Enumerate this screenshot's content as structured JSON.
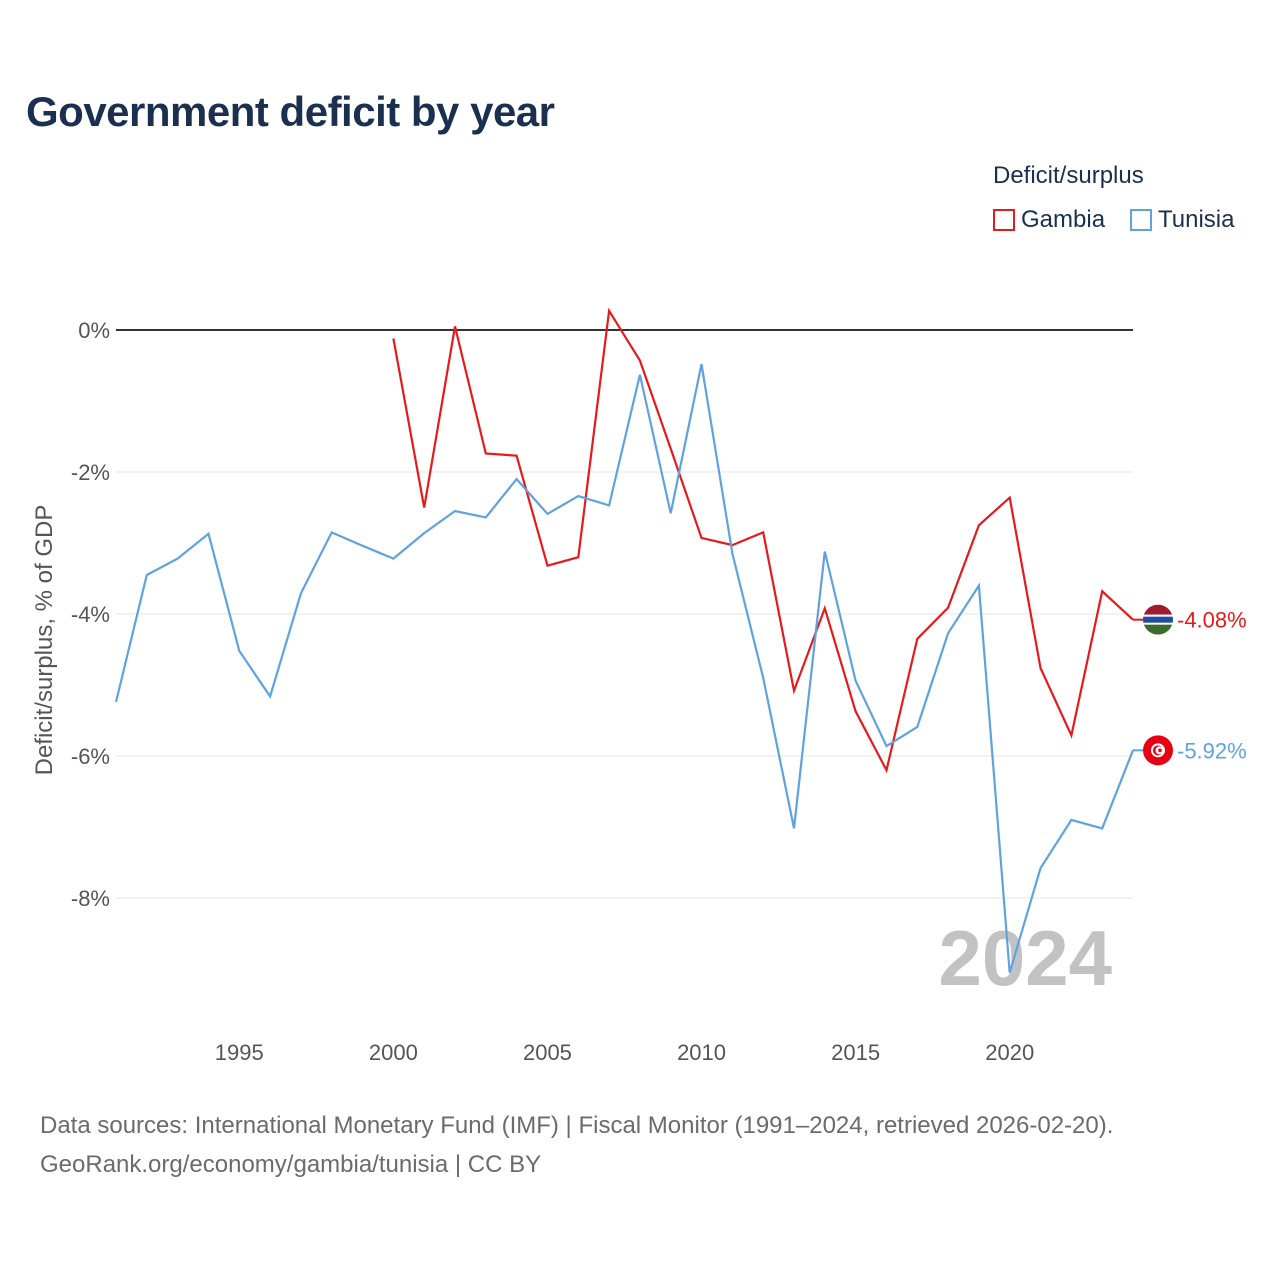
{
  "title": "Government deficit by year",
  "legend": {
    "title": "Deficit/surplus",
    "items": [
      {
        "name": "Gambia",
        "color": "#e41a1c"
      },
      {
        "name": "Tunisia",
        "color": "#5fa2e0"
      }
    ]
  },
  "watermark_year": "2024",
  "source": {
    "line1": "Data sources: International Monetary Fund (IMF) | Fiscal Monitor (1991–2024, retrieved 2026-02-20).",
    "line2": "GeoRank.org/economy/gambia/tunisia | CC BY"
  },
  "chart_data": {
    "type": "line",
    "title": "Government deficit by year",
    "xlabel": "",
    "ylabel": "Deficit/surplus, % of GDP",
    "xlim": [
      1991,
      2024
    ],
    "ylim": [
      -10,
      0.5
    ],
    "x_ticks": [
      1995,
      2000,
      2005,
      2010,
      2015,
      2020
    ],
    "y_ticks": [
      0,
      -2,
      -4,
      -6,
      -8
    ],
    "y_tick_labels": [
      "0%",
      "-2%",
      "-4%",
      "-6%",
      "-8%"
    ],
    "series": [
      {
        "name": "Gambia",
        "color": "#e41a1c",
        "end_label": "-4.08%",
        "flag_icon": "gambia-flag-icon",
        "x": [
          2000,
          2001,
          2002,
          2003,
          2004,
          2005,
          2006,
          2007,
          2008,
          2009,
          2010,
          2011,
          2012,
          2013,
          2014,
          2015,
          2016,
          2017,
          2018,
          2019,
          2020,
          2021,
          2022,
          2023,
          2024
        ],
        "values": [
          -0.12,
          -2.5,
          0.05,
          -1.74,
          -1.77,
          -3.32,
          -3.2,
          0.27,
          -0.43,
          -1.67,
          -2.93,
          -3.03,
          -2.85,
          -5.08,
          -3.92,
          -5.37,
          -6.2,
          -4.35,
          -3.91,
          -2.75,
          -2.36,
          -4.76,
          -5.71,
          -3.68,
          -4.08
        ]
      },
      {
        "name": "Tunisia",
        "color": "#5fa2e0",
        "end_label": "-5.92%",
        "flag_icon": "tunisia-flag-icon",
        "x": [
          1991,
          1992,
          1993,
          1994,
          1995,
          1996,
          1997,
          1998,
          1999,
          2000,
          2001,
          2002,
          2003,
          2004,
          2005,
          2006,
          2007,
          2008,
          2009,
          2010,
          2011,
          2012,
          2013,
          2014,
          2015,
          2016,
          2017,
          2018,
          2019,
          2020,
          2021,
          2022,
          2023,
          2024
        ],
        "values": [
          -5.24,
          -3.45,
          -3.22,
          -2.87,
          -4.52,
          -5.16,
          -3.71,
          -2.85,
          -3.04,
          -3.22,
          -2.86,
          -2.55,
          -2.64,
          -2.1,
          -2.59,
          -2.34,
          -2.47,
          -0.63,
          -2.58,
          -0.48,
          -3.15,
          -4.9,
          -7.02,
          -3.12,
          -4.94,
          -5.86,
          -5.59,
          -4.27,
          -3.6,
          -9.05,
          -7.58,
          -6.9,
          -7.02,
          -5.92
        ]
      }
    ]
  }
}
